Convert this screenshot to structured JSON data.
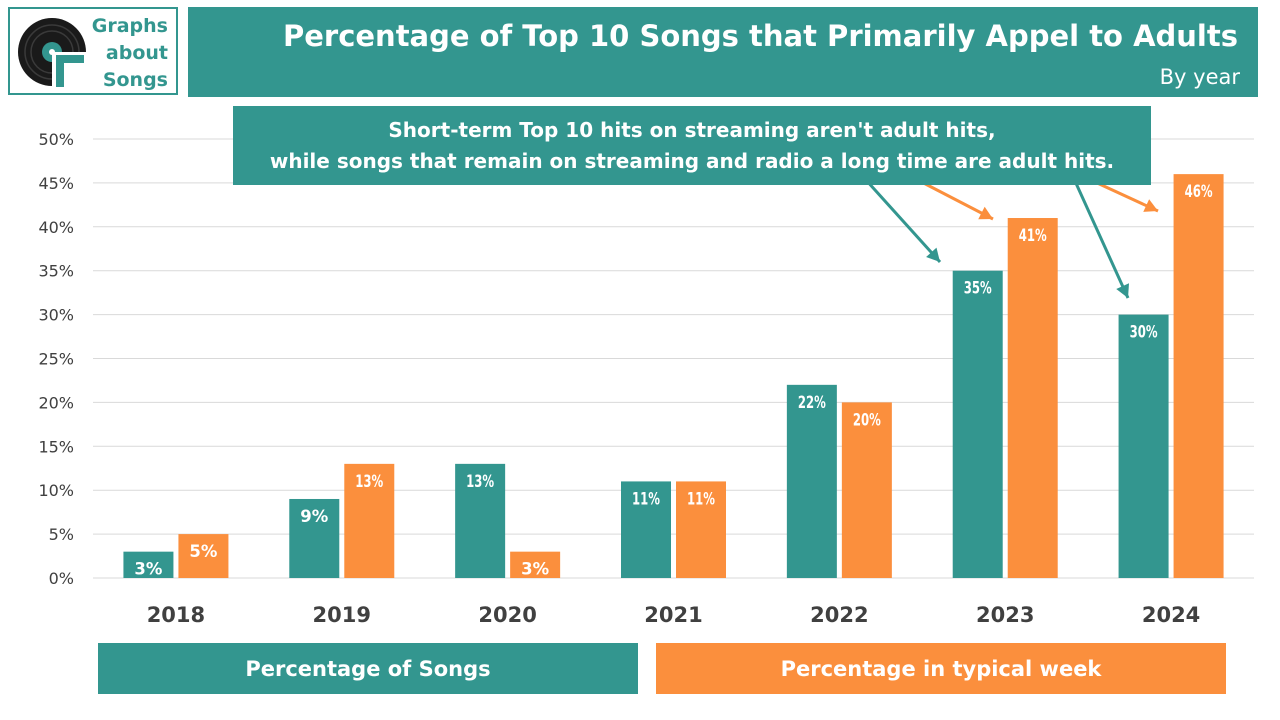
{
  "logo": {
    "lines": [
      "Graphs",
      "about",
      "Songs"
    ]
  },
  "header": {
    "title": "Percentage of Top 10 Songs that Primarily Appel to Adults",
    "subtitle": "By year"
  },
  "callout": {
    "line1": "Short-term Top 10 hits on streaming aren't adult hits,",
    "line2": "while songs that remain on streaming and radio a long time are adult hits."
  },
  "colors": {
    "teal": "#33968f",
    "orange": "#fb8f3d",
    "grid": "#d9d9d9",
    "text": "#404040"
  },
  "chart_data": {
    "type": "bar",
    "categories": [
      "2018",
      "2019",
      "2020",
      "2021",
      "2022",
      "2023",
      "2024"
    ],
    "series": [
      {
        "name": "Percentage of Songs",
        "values": [
          3,
          9,
          13,
          11,
          22,
          35,
          30
        ],
        "labels": [
          "3%",
          "9%",
          "13%",
          "11%",
          "22%",
          "35%",
          "30%"
        ]
      },
      {
        "name": "Percentage in typical week",
        "values": [
          5,
          13,
          3,
          11,
          20,
          41,
          46
        ],
        "labels": [
          "5%",
          "13%",
          "3%",
          "11%",
          "20%",
          "41%",
          "46%"
        ]
      }
    ],
    "ylim": [
      0,
      50
    ],
    "yticks": [
      "0%",
      "5%",
      "10%",
      "15%",
      "20%",
      "25%",
      "30%",
      "35%",
      "40%",
      "45%",
      "50%"
    ],
    "grid": true,
    "legend_position": "bottom"
  }
}
